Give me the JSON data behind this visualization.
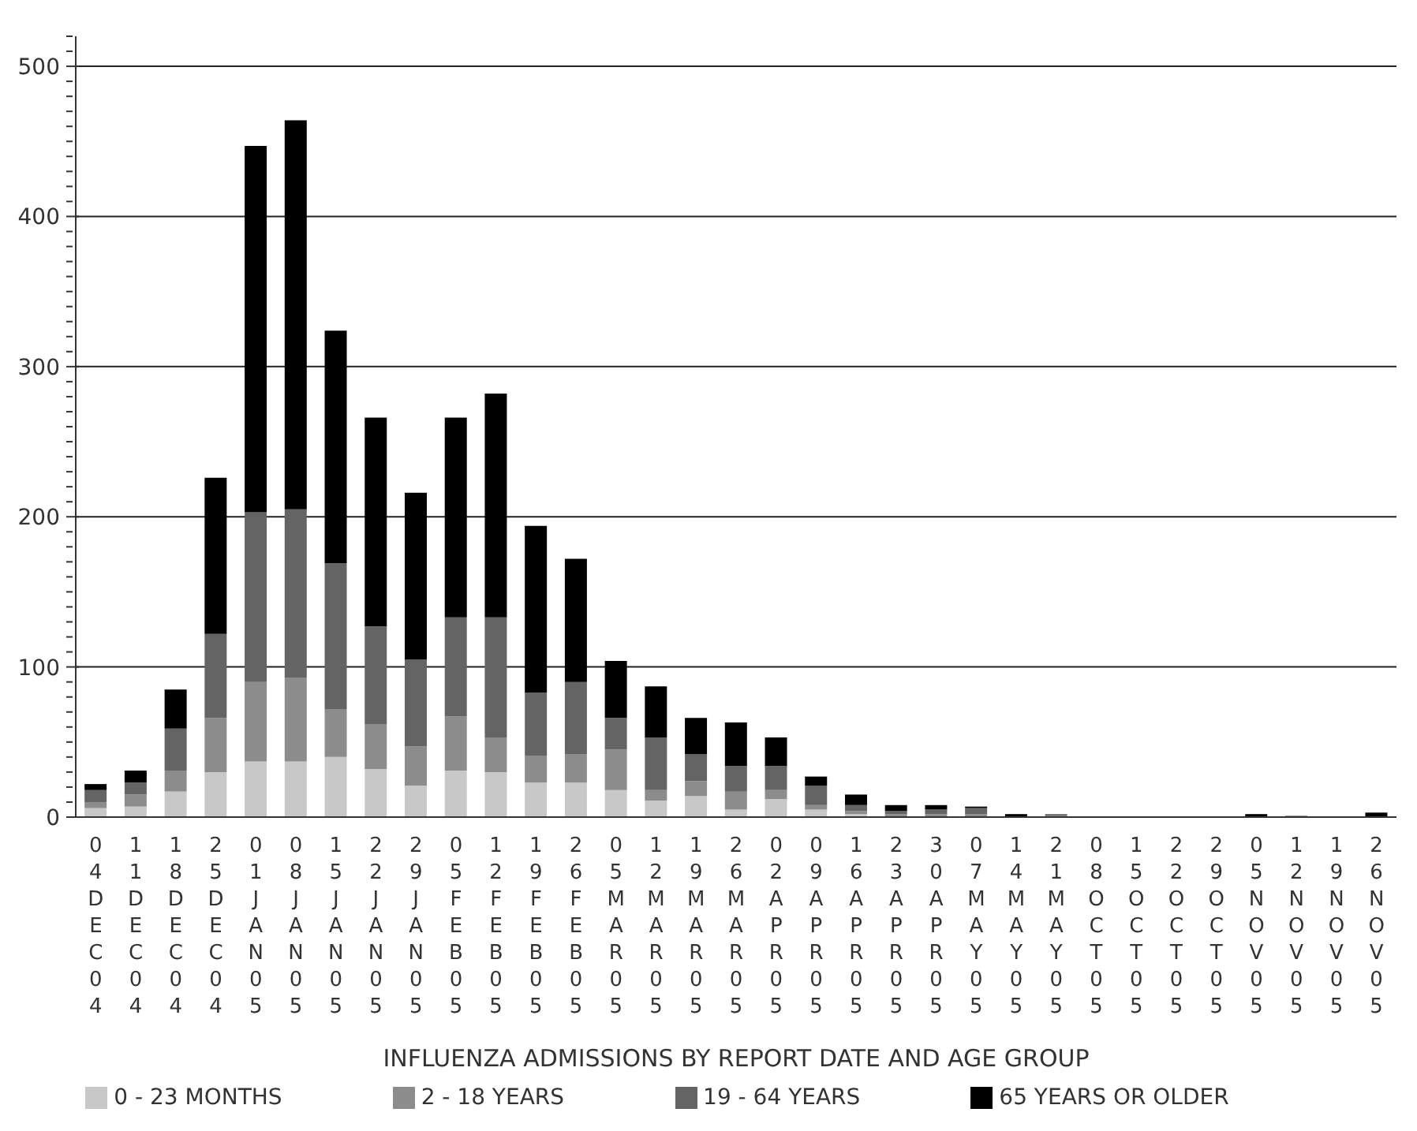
{
  "chart_data": {
    "type": "bar",
    "stacked": true,
    "xlabel": "INFLUENZA ADMISSIONS BY REPORT DATE AND AGE GROUP",
    "categories": [
      "04DEC04",
      "11DEC04",
      "18DEC04",
      "25DEC04",
      "01JAN05",
      "08JAN05",
      "15JAN05",
      "22JAN05",
      "29JAN05",
      "05FEB05",
      "12FEB05",
      "19FEB05",
      "26FEB05",
      "05MAR05",
      "12MAR05",
      "19MAR05",
      "26MAR05",
      "02APR05",
      "09APR05",
      "16APR05",
      "23APR05",
      "30APR05",
      "07MAY05",
      "14MAY05",
      "21MAY05",
      "08OCT05",
      "15OCT05",
      "22OCT05",
      "29OCT05",
      "05NOV05",
      "12NOV05",
      "19NOV05",
      "26NOV05"
    ],
    "series": [
      {
        "name": "0 - 23 MONTHS",
        "color": "#c8c8c8",
        "values": [
          6,
          7,
          17,
          30,
          37,
          37,
          40,
          32,
          21,
          31,
          30,
          23,
          23,
          18,
          11,
          14,
          5,
          12,
          5,
          2,
          null,
          null,
          null,
          0,
          0,
          0,
          0,
          0,
          0,
          0,
          0,
          0,
          0
        ]
      },
      {
        "name": "2 - 18 YEARS",
        "color": "#8c8c8c",
        "values": [
          4,
          8,
          14,
          36,
          53,
          56,
          32,
          30,
          26,
          36,
          23,
          18,
          19,
          27,
          7,
          10,
          12,
          6,
          3,
          2,
          2,
          2,
          2,
          0,
          1,
          0,
          0,
          0,
          0,
          0,
          1,
          0,
          0
        ]
      },
      {
        "name": "19 - 64 YEARS",
        "color": "#646464",
        "values": [
          8,
          8,
          28,
          56,
          113,
          112,
          97,
          65,
          58,
          66,
          80,
          42,
          48,
          21,
          35,
          18,
          17,
          16,
          13,
          4,
          2,
          3,
          4,
          null,
          1,
          0,
          0,
          0,
          0,
          0,
          0,
          0,
          null
        ]
      },
      {
        "name": "65 YEARS OR OLDER",
        "color": "#000000",
        "values": [
          4,
          8,
          26,
          104,
          244,
          259,
          155,
          139,
          111,
          133,
          149,
          111,
          82,
          38,
          34,
          24,
          29,
          19,
          6,
          7,
          4,
          3,
          1,
          2,
          0,
          0,
          0,
          0,
          0,
          2,
          0,
          0,
          3
        ]
      }
    ],
    "ylim": [
      0,
      520
    ],
    "yticks": [
      0,
      {
        "value": 10,
        "label": null
      },
      {
        "value": 20,
        "label": null
      },
      {
        "value": 30,
        "label": null
      },
      {
        "value": 40,
        "label": null
      },
      {
        "value": 50,
        "label": null
      },
      {
        "value": 60,
        "label": null
      },
      {
        "value": 70,
        "label": null
      },
      {
        "value": 80,
        "label": null
      },
      {
        "value": 90,
        "label": null
      },
      100,
      {
        "value": 110,
        "label": null
      },
      {
        "value": 120,
        "label": null
      },
      {
        "value": 130,
        "label": null
      },
      {
        "value": 140,
        "label": null
      },
      {
        "value": 150,
        "label": null
      },
      {
        "value": 160,
        "label": null
      },
      {
        "value": 170,
        "label": null
      },
      {
        "value": 180,
        "label": null
      },
      {
        "value": 190,
        "label": null
      },
      200,
      {
        "value": 210,
        "label": null
      },
      {
        "value": 220,
        "label": null
      },
      {
        "value": 230,
        "label": null
      },
      {
        "value": 240,
        "label": null
      },
      {
        "value": 250,
        "label": null
      },
      {
        "value": 260,
        "label": null
      },
      {
        "value": 270,
        "label": null
      },
      {
        "value": 280,
        "label": null
      },
      {
        "value": 290,
        "label": null
      },
      300,
      {
        "value": 310,
        "label": null
      },
      {
        "value": 320,
        "label": null
      },
      {
        "value": 330,
        "label": null
      },
      {
        "value": 340,
        "label": null
      },
      {
        "value": 350,
        "label": null
      },
      {
        "value": 360,
        "label": null
      },
      {
        "value": 370,
        "label": null
      },
      {
        "value": 380,
        "label": null
      },
      {
        "value": 390,
        "label": null
      },
      400,
      {
        "value": 410,
        "label": null
      },
      {
        "value": 420,
        "label": null
      },
      {
        "value": 430,
        "label": null
      },
      {
        "value": 440,
        "label": null
      },
      {
        "value": 450,
        "label": null
      },
      {
        "value": 460,
        "label": null
      },
      {
        "value": 470,
        "label": null
      },
      {
        "value": 480,
        "label": null
      },
      {
        "value": 490,
        "label": null
      },
      500,
      {
        "value": 510,
        "label": null
      },
      {
        "value": 520,
        "label": null
      }
    ],
    "grid": "y",
    "legend": "bottom"
  }
}
